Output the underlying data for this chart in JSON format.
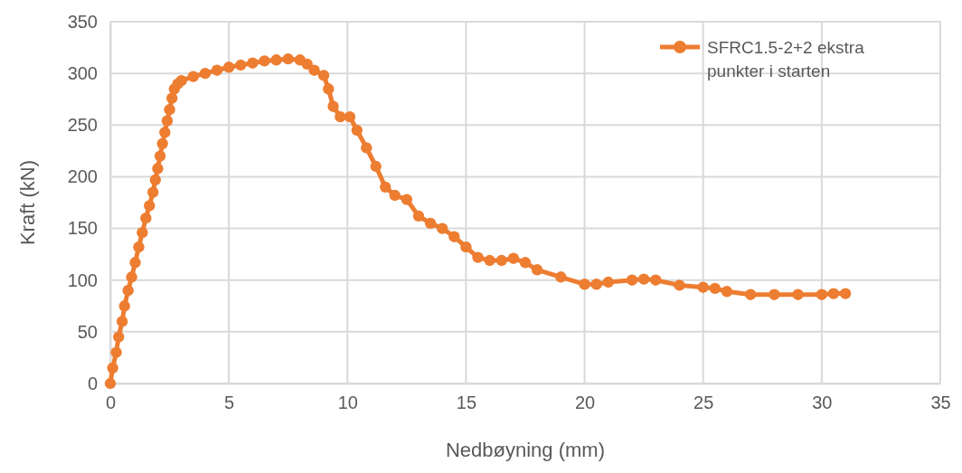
{
  "chart_data": {
    "type": "line",
    "xlabel": "Nedbøyning (mm)",
    "ylabel": "Kraft (kN)",
    "xlim": [
      0,
      35
    ],
    "xticks": [
      0,
      5,
      10,
      15,
      20,
      25,
      30,
      35
    ],
    "ylim": [
      0,
      350
    ],
    "yticks": [
      0,
      50,
      100,
      150,
      200,
      250,
      300,
      350
    ],
    "grid": true,
    "legend": "top right",
    "marker": "circle",
    "line_style": "solid",
    "series": [
      {
        "name": "SFRC1.5-2+2 ekstra punkter i starten",
        "color": "#ed7d31",
        "x": [
          0,
          0.1,
          0.25,
          0.35,
          0.5,
          0.6,
          0.75,
          0.9,
          1.05,
          1.2,
          1.35,
          1.5,
          1.65,
          1.8,
          1.9,
          2.0,
          2.1,
          2.2,
          2.3,
          2.4,
          2.5,
          2.6,
          2.7,
          2.85,
          3.0,
          3.5,
          4,
          4.5,
          5,
          5.5,
          6,
          6.5,
          7,
          7.5,
          8,
          8.3,
          8.6,
          9.0,
          9.2,
          9.4,
          9.7,
          10.1,
          10.4,
          10.8,
          11.2,
          11.6,
          12,
          12.5,
          13,
          13.5,
          14,
          14.5,
          15,
          15.5,
          16,
          16.5,
          17,
          17.5,
          18,
          19,
          20,
          20.5,
          21,
          22,
          22.5,
          23,
          24,
          25,
          25.5,
          26,
          27,
          28,
          29,
          30,
          30.5,
          31
        ],
        "values": [
          0,
          15,
          30,
          45,
          60,
          75,
          90,
          103,
          117,
          132,
          146,
          160,
          172,
          185,
          197,
          208,
          220,
          232,
          243,
          254,
          265,
          276,
          285,
          290,
          293,
          297,
          300,
          303,
          306,
          308,
          310,
          312,
          313,
          314,
          313,
          309,
          303,
          298,
          285,
          268,
          258,
          258,
          245,
          228,
          210,
          190,
          182,
          178,
          162,
          155,
          150,
          142,
          132,
          122,
          119,
          119,
          121,
          117,
          110,
          103,
          96,
          96,
          98,
          100,
          101,
          100,
          95,
          93,
          92,
          89,
          86,
          86,
          86,
          86,
          87,
          87
        ]
      }
    ]
  }
}
